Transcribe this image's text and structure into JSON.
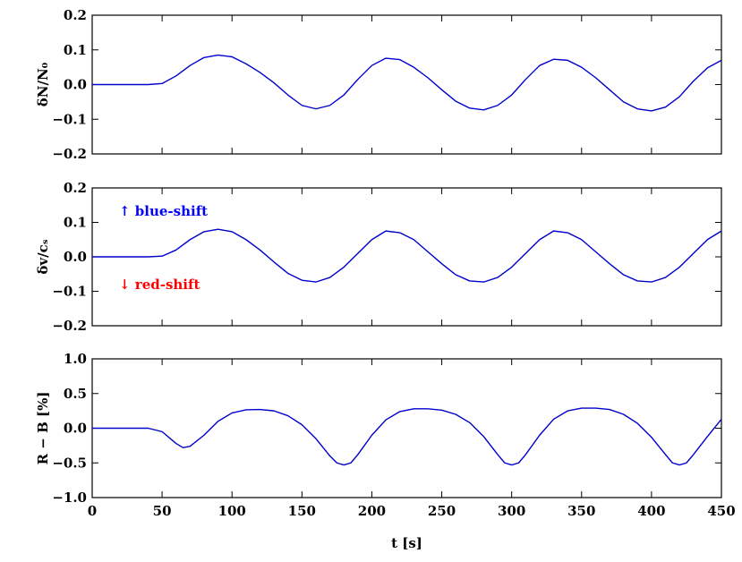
{
  "chart_data": [
    {
      "type": "line",
      "ylabel": "δN/N₀",
      "xlim": [
        0,
        450
      ],
      "xticks": [
        0,
        50,
        100,
        150,
        200,
        250,
        300,
        350,
        400,
        450
      ],
      "ylim": [
        -0.2,
        0.2
      ],
      "yticks": [
        {
          "value": -0.2,
          "label": "−0.2"
        },
        {
          "value": -0.1,
          "label": "−0.1"
        },
        {
          "value": 0,
          "label": "0.0"
        },
        0.1,
        0.2
      ],
      "x": [
        0,
        10,
        20,
        30,
        40,
        50,
        60,
        70,
        80,
        90,
        100,
        110,
        120,
        130,
        140,
        150,
        160,
        170,
        180,
        190,
        200,
        210,
        220,
        230,
        240,
        250,
        260,
        270,
        280,
        290,
        300,
        310,
        320,
        330,
        340,
        350,
        360,
        370,
        380,
        390,
        400,
        410,
        420,
        430,
        440,
        450
      ],
      "series": [
        {
          "color": "#0000cc",
          "values": [
            0,
            0,
            0,
            0,
            0,
            0.003,
            0.025,
            0.055,
            0.078,
            0.085,
            0.08,
            0.06,
            0.035,
            0.005,
            -0.03,
            -0.06,
            -0.07,
            -0.06,
            -0.03,
            0.015,
            0.055,
            0.076,
            0.072,
            0.05,
            0.02,
            -0.015,
            -0.048,
            -0.068,
            -0.073,
            -0.06,
            -0.03,
            0.015,
            0.055,
            0.073,
            0.07,
            0.05,
            0.02,
            -0.015,
            -0.05,
            -0.07,
            -0.076,
            -0.065,
            -0.035,
            0.01,
            0.048,
            0.07
          ]
        }
      ]
    },
    {
      "type": "line",
      "ylabel": "δv/cₛ",
      "xlim": [
        0,
        450
      ],
      "xticks": [
        0,
        50,
        100,
        150,
        200,
        250,
        300,
        350,
        400,
        450
      ],
      "ylim": [
        -0.2,
        0.2
      ],
      "yticks": [
        {
          "value": -0.2,
          "label": "−0.2"
        },
        {
          "value": -0.1,
          "label": "−0.1"
        },
        {
          "value": 0,
          "label": "0.0"
        },
        0.1,
        0.2
      ],
      "annotations": [
        {
          "text": "↑ blue-shift",
          "color": "#0000ff"
        },
        {
          "text": "↓ red-shift",
          "color": "#ff0000"
        }
      ],
      "x": [
        0,
        10,
        20,
        30,
        40,
        50,
        60,
        70,
        80,
        90,
        100,
        110,
        120,
        130,
        140,
        150,
        160,
        170,
        180,
        190,
        200,
        210,
        220,
        230,
        240,
        250,
        260,
        270,
        280,
        290,
        300,
        310,
        320,
        330,
        340,
        350,
        360,
        370,
        380,
        390,
        400,
        410,
        420,
        430,
        440,
        450
      ],
      "series": [
        {
          "color": "#0000cc",
          "values": [
            0,
            0,
            0,
            0,
            0,
            0.002,
            0.02,
            0.05,
            0.073,
            0.08,
            0.073,
            0.05,
            0.02,
            -0.015,
            -0.048,
            -0.068,
            -0.073,
            -0.06,
            -0.03,
            0.01,
            0.05,
            0.075,
            0.07,
            0.05,
            0.015,
            -0.02,
            -0.052,
            -0.07,
            -0.073,
            -0.06,
            -0.03,
            0.01,
            0.05,
            0.075,
            0.07,
            0.05,
            0.015,
            -0.02,
            -0.052,
            -0.07,
            -0.073,
            -0.06,
            -0.03,
            0.01,
            0.05,
            0.075
          ]
        }
      ]
    },
    {
      "type": "line",
      "ylabel": "R − B [%]",
      "xlabel": "t [s]",
      "xlim": [
        0,
        450
      ],
      "xticks": [
        0,
        50,
        100,
        150,
        200,
        250,
        300,
        350,
        400,
        450
      ],
      "ylim": [
        -1,
        1
      ],
      "yticks": [
        {
          "value": -1,
          "label": "−1.0"
        },
        {
          "value": -0.5,
          "label": "−0.5"
        },
        {
          "value": 0,
          "label": "0.0"
        },
        0.5,
        {
          "value": 1,
          "label": "1.0"
        }
      ],
      "x": [
        0,
        10,
        20,
        30,
        40,
        50,
        60,
        65,
        70,
        80,
        90,
        100,
        110,
        120,
        130,
        140,
        150,
        160,
        170,
        175,
        180,
        185,
        190,
        200,
        210,
        220,
        230,
        240,
        250,
        260,
        270,
        280,
        290,
        295,
        300,
        305,
        310,
        320,
        330,
        340,
        350,
        360,
        370,
        380,
        390,
        400,
        410,
        415,
        420,
        425,
        430,
        440,
        450
      ],
      "series": [
        {
          "color": "#0000cc",
          "values": [
            0,
            0,
            0,
            0,
            0,
            -0.05,
            -0.22,
            -0.28,
            -0.26,
            -0.1,
            0.1,
            0.22,
            0.265,
            0.27,
            0.25,
            0.18,
            0.05,
            -0.15,
            -0.4,
            -0.5,
            -0.53,
            -0.5,
            -0.38,
            -0.1,
            0.12,
            0.24,
            0.28,
            0.28,
            0.26,
            0.2,
            0.08,
            -0.12,
            -0.38,
            -0.5,
            -0.53,
            -0.5,
            -0.38,
            -0.1,
            0.13,
            0.25,
            0.29,
            0.29,
            0.27,
            0.2,
            0.07,
            -0.13,
            -0.38,
            -0.5,
            -0.53,
            -0.5,
            -0.38,
            -0.12,
            0.13
          ]
        }
      ]
    }
  ]
}
